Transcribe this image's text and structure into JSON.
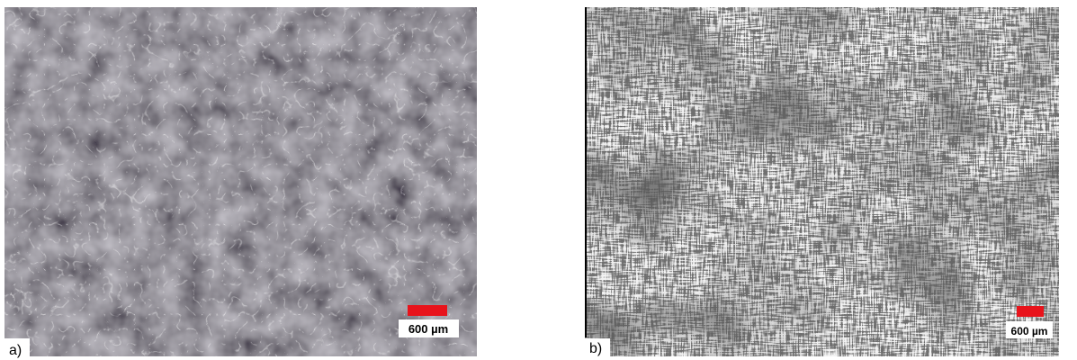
{
  "panels": [
    {
      "label": "a)",
      "scale_bar": "600 µm"
    },
    {
      "label": "b)",
      "scale_bar": "600 µm"
    }
  ]
}
